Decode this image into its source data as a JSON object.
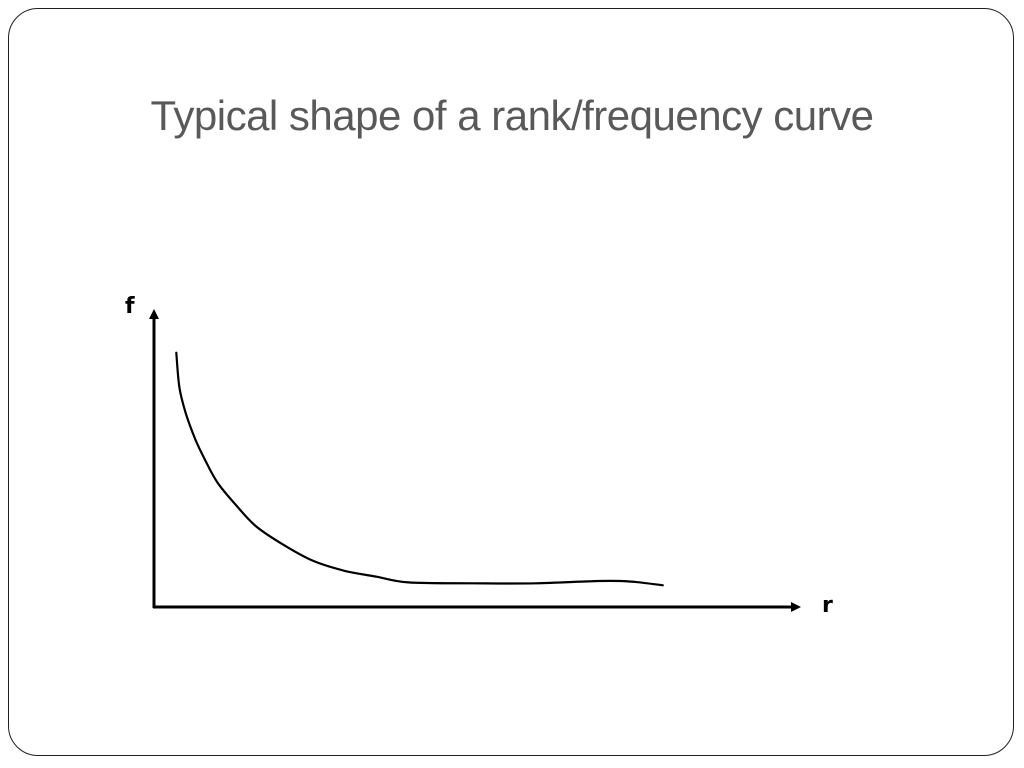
{
  "slide": {
    "title": "Typical shape of a rank/frequency curve"
  },
  "chart_data": {
    "type": "line",
    "title": "",
    "xlabel": "r",
    "ylabel": "f",
    "grid": false,
    "legend": "none",
    "xlim": [
      0,
      10
    ],
    "ylim": [
      0,
      10
    ],
    "series": [
      {
        "color": "#000000",
        "x": [
          0.35,
          0.4,
          0.5,
          0.65,
          0.8,
          1.0,
          1.3,
          1.6,
          2.0,
          2.5,
          3.0,
          3.5,
          4.0,
          5.0,
          6.0,
          7.0,
          7.5,
          8.0
        ],
        "y": [
          8.8,
          7.6,
          6.7,
          5.8,
          5.1,
          4.3,
          3.5,
          2.8,
          2.2,
          1.6,
          1.25,
          1.05,
          0.85,
          0.82,
          0.82,
          0.9,
          0.88,
          0.75
        ]
      }
    ]
  }
}
